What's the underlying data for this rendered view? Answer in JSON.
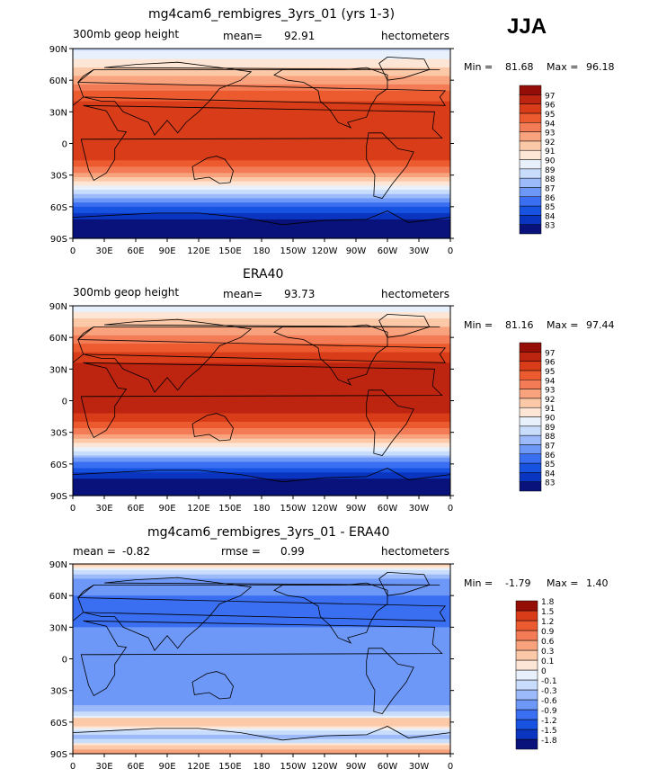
{
  "season": "JJA",
  "colors": {
    "abs_scale": [
      "#08127a",
      "#0a35c0",
      "#1752e0",
      "#3a6ff2",
      "#6e98f8",
      "#9cbaf9",
      "#c8dcfb",
      "#e8f0fb",
      "#fde6d5",
      "#fbc8a8",
      "#f8a37e",
      "#f37c56",
      "#ec5a2f",
      "#d93c19",
      "#bd2510",
      "#940d06"
    ],
    "diff_scale": [
      "#08127a",
      "#0a35c0",
      "#1752e0",
      "#3a6ff2",
      "#6e98f8",
      "#9cbaf9",
      "#c8dcfb",
      "#e8f0fb",
      "#fde6d5",
      "#fbc8a8",
      "#f8a37e",
      "#f37c56",
      "#ec5a2f",
      "#d93c19",
      "#940d06"
    ]
  },
  "chart_data": [
    {
      "type": "heatmap",
      "title": "mg4cam6_rembigres_3yrs_01 (yrs 1-3)",
      "left_label": "300mb geop height",
      "mean_label": "mean=",
      "mean": "92.91",
      "units": "hectometers",
      "min_label": "Min =",
      "min": "81.68",
      "max_label": "Max =",
      "max": "96.18",
      "x_ticks": [
        "0",
        "30E",
        "60E",
        "90E",
        "120E",
        "150E",
        "180",
        "150W",
        "120W",
        "90W",
        "60W",
        "30W",
        "0"
      ],
      "y_ticks": [
        "90N",
        "60N",
        "30N",
        "0",
        "30S",
        "60S",
        "90S"
      ],
      "levels": [
        "83",
        "84",
        "85",
        "86",
        "87",
        "88",
        "89",
        "90",
        "91",
        "92",
        "93",
        "94",
        "95",
        "96",
        "97"
      ],
      "lat_profile": [
        {
          "lat": 90,
          "value": 88.6
        },
        {
          "lat": 75,
          "value": 90.6
        },
        {
          "lat": 60,
          "value": 92.4
        },
        {
          "lat": 45,
          "value": 94.6
        },
        {
          "lat": 30,
          "value": 95.8
        },
        {
          "lat": 15,
          "value": 95.9
        },
        {
          "lat": 0,
          "value": 95.5
        },
        {
          "lat": -15,
          "value": 95.1
        },
        {
          "lat": -30,
          "value": 92.6
        },
        {
          "lat": -45,
          "value": 88.8
        },
        {
          "lat": -60,
          "value": 84.9
        },
        {
          "lat": -75,
          "value": 82.4
        },
        {
          "lat": -90,
          "value": 82.0
        }
      ]
    },
    {
      "type": "heatmap",
      "title": "ERA40",
      "left_label": "300mb geop height",
      "mean_label": "mean=",
      "mean": "93.73",
      "units": "hectometers",
      "min_label": "Min =",
      "min": "81.16",
      "max_label": "Max =",
      "max": "97.44",
      "x_ticks": [
        "0",
        "30E",
        "60E",
        "90E",
        "120E",
        "150E",
        "180",
        "150W",
        "120W",
        "90W",
        "60W",
        "30W",
        "0"
      ],
      "y_ticks": [
        "90N",
        "60N",
        "30N",
        "0",
        "30S",
        "60S",
        "90S"
      ],
      "levels": [
        "83",
        "84",
        "85",
        "86",
        "87",
        "88",
        "89",
        "90",
        "91",
        "92",
        "93",
        "94",
        "95",
        "96",
        "97"
      ],
      "lat_profile": [
        {
          "lat": 90,
          "value": 89.2
        },
        {
          "lat": 75,
          "value": 91.4
        },
        {
          "lat": 60,
          "value": 93.2
        },
        {
          "lat": 45,
          "value": 95.2
        },
        {
          "lat": 30,
          "value": 96.5
        },
        {
          "lat": 15,
          "value": 96.8
        },
        {
          "lat": 0,
          "value": 96.3
        },
        {
          "lat": -15,
          "value": 95.9
        },
        {
          "lat": -30,
          "value": 93.5
        },
        {
          "lat": -45,
          "value": 89.6
        },
        {
          "lat": -60,
          "value": 85.6
        },
        {
          "lat": -75,
          "value": 82.9
        },
        {
          "lat": -90,
          "value": 82.3
        }
      ]
    },
    {
      "type": "heatmap",
      "title": "mg4cam6_rembigres_3yrs_01 - ERA40",
      "left_label": "mean =",
      "left_value": "-0.82",
      "mean_label": "rmse =",
      "mean": "0.99",
      "units": "hectometers",
      "min_label": "Min =",
      "min": "-1.79",
      "max_label": "Max =",
      "max": "1.40",
      "x_ticks": [
        "0",
        "30E",
        "60E",
        "90E",
        "120E",
        "150E",
        "180",
        "150W",
        "120W",
        "90W",
        "60W",
        "30W",
        "0"
      ],
      "y_ticks": [
        "90N",
        "60N",
        "30N",
        "0",
        "30S",
        "60S",
        "90S"
      ],
      "levels": [
        "-1.8",
        "-1.5",
        "-1.2",
        "-0.9",
        "-0.6",
        "-0.3",
        "-0.1",
        "0",
        "0.1",
        "0.3",
        "0.6",
        "0.9",
        "1.2",
        "1.5",
        "1.8"
      ],
      "lat_profile": [
        {
          "lat": 90,
          "value": 0.2
        },
        {
          "lat": 75,
          "value": -0.6
        },
        {
          "lat": 60,
          "value": -0.9
        },
        {
          "lat": 45,
          "value": -1.0
        },
        {
          "lat": 30,
          "value": -0.9
        },
        {
          "lat": 15,
          "value": -0.9
        },
        {
          "lat": 0,
          "value": -0.8
        },
        {
          "lat": -15,
          "value": -0.8
        },
        {
          "lat": -30,
          "value": -0.8
        },
        {
          "lat": -45,
          "value": -0.6
        },
        {
          "lat": -60,
          "value": 0.3
        },
        {
          "lat": -75,
          "value": -0.4
        },
        {
          "lat": -90,
          "value": 0.6
        }
      ]
    }
  ]
}
